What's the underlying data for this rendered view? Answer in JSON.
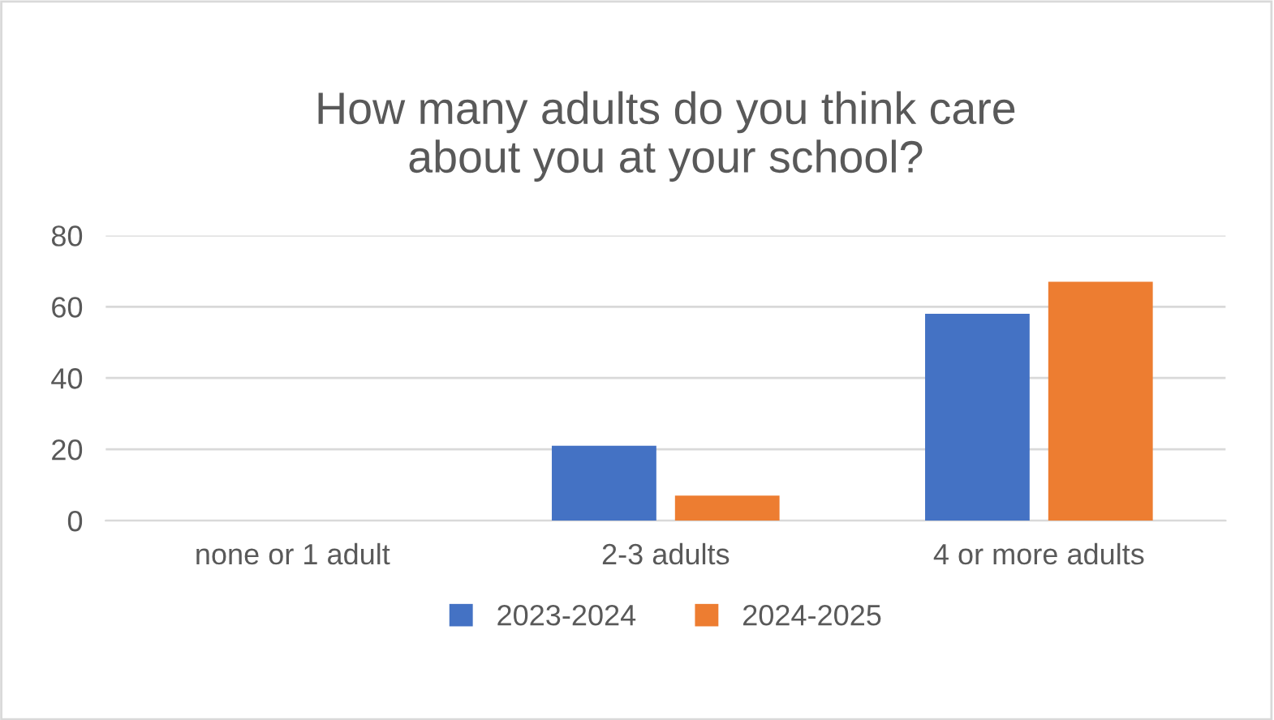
{
  "chart_data": {
    "type": "bar",
    "title": "How many adults do you think care\nabout you at your school?",
    "categories": [
      "none or 1 adult",
      "2-3 adults",
      "4 or more adults"
    ],
    "series": [
      {
        "name": "2023-2024",
        "color": "#4472c4",
        "values": [
          0,
          21,
          58
        ]
      },
      {
        "name": "2024-2025",
        "color": "#ed7d31",
        "values": [
          0,
          7,
          67
        ]
      }
    ],
    "ylim": [
      0,
      80
    ],
    "yticks": [
      0,
      20,
      40,
      60,
      80
    ],
    "grid": "y",
    "legend": "bottom"
  }
}
